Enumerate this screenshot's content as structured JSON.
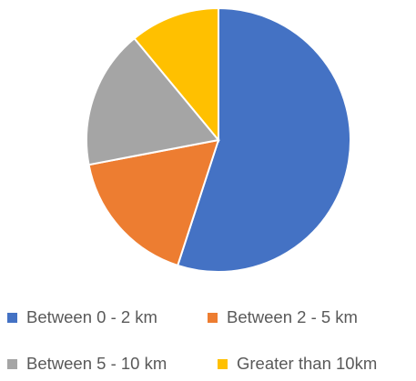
{
  "chart_data": {
    "type": "pie",
    "title": "",
    "series": [
      {
        "values": [
          55,
          17,
          17,
          11
        ]
      }
    ],
    "categories": [
      "Between 0 - 2 km",
      "Between 2 - 5 km",
      "Between 5 - 10 km",
      "Greater than 10km"
    ],
    "colors": [
      "#4472C4",
      "#ED7D31",
      "#A5A5A5",
      "#FFC000"
    ],
    "legend_position": "bottom"
  }
}
